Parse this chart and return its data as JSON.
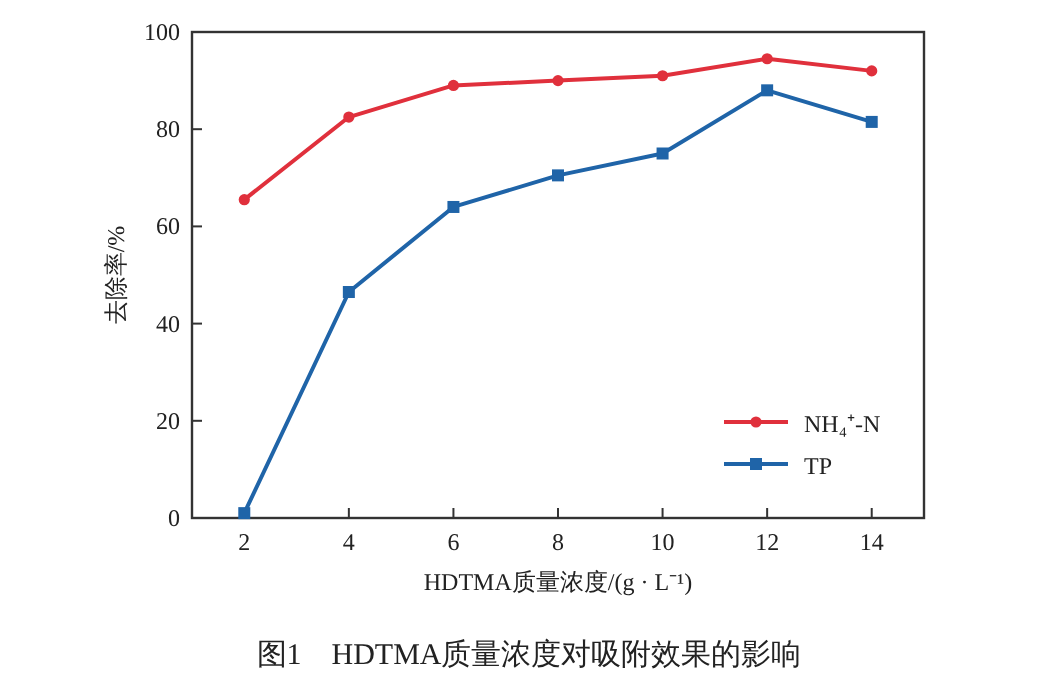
{
  "chart_data": {
    "type": "line",
    "title": "图1　HDTMA质量浓度对吸附效果的影响",
    "xlabel": "HDTMA质量浓度/(g · L⁻¹)",
    "ylabel": "去除率/%",
    "x": [
      2,
      4,
      6,
      8,
      10,
      12,
      14
    ],
    "series": [
      {
        "name": "NH₄⁺-N",
        "color": "#e0303c",
        "marker": "circle",
        "values": [
          65.5,
          82.5,
          89,
          90,
          91,
          94.5,
          92
        ]
      },
      {
        "name": "TP",
        "color": "#1f64a8",
        "marker": "square",
        "values": [
          1,
          46.5,
          64,
          70.5,
          75,
          88,
          81.5
        ]
      }
    ],
    "xlim": [
      1,
      15
    ],
    "ylim": [
      0,
      100
    ],
    "xticks": [
      2,
      4,
      6,
      8,
      10,
      12,
      14
    ],
    "yticks": [
      0,
      20,
      40,
      60,
      80,
      100
    ],
    "legend": "bottom right",
    "grid": false,
    "line_style": "solid"
  }
}
